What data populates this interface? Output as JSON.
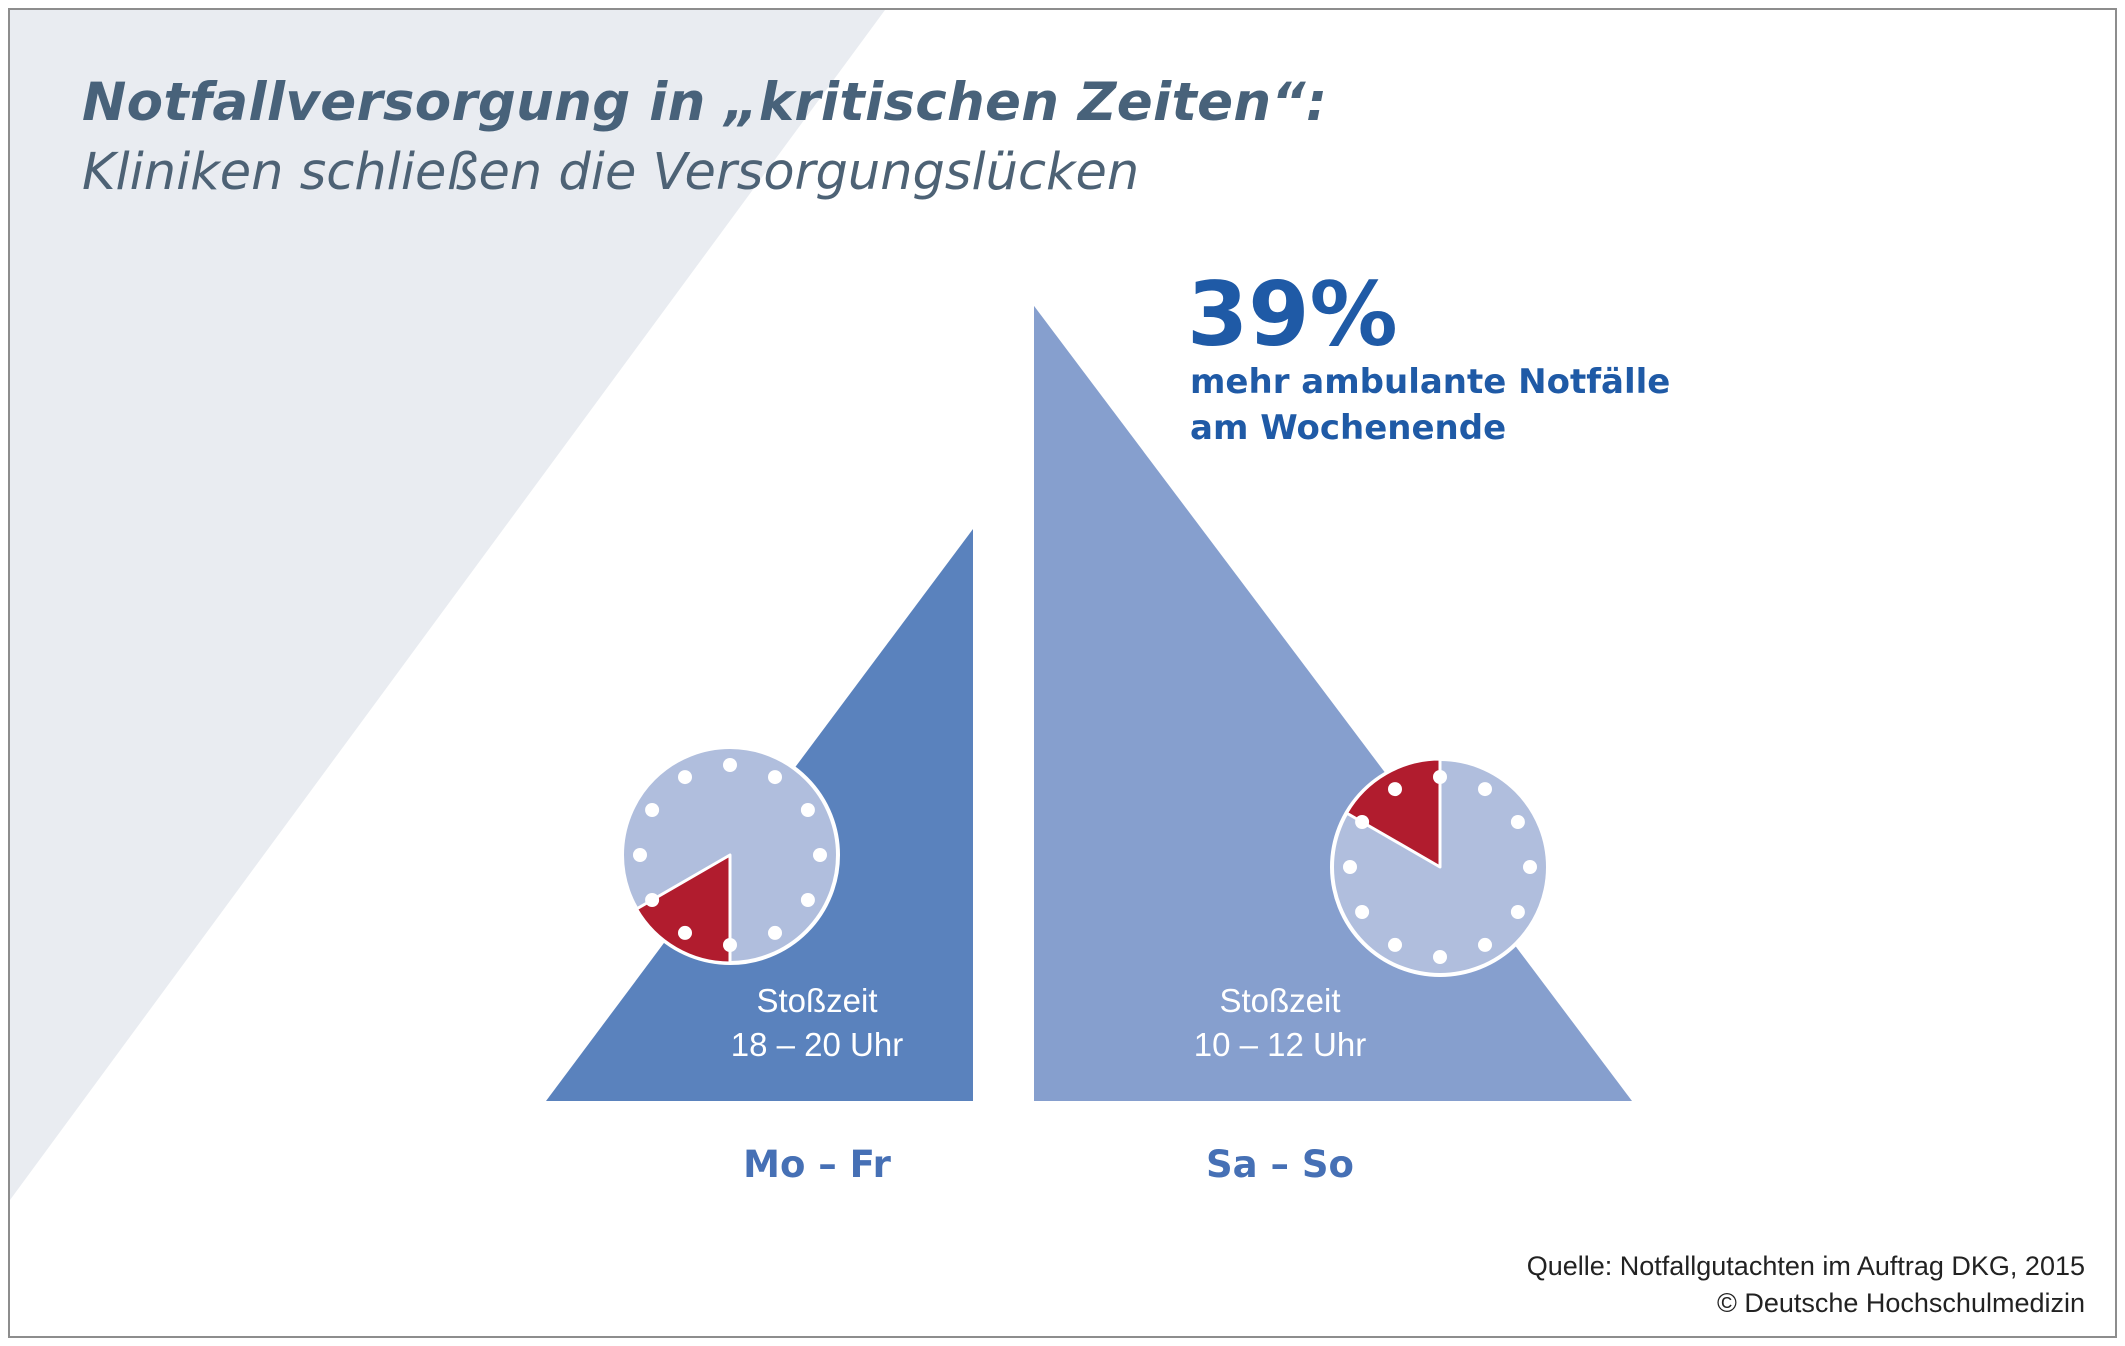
{
  "header": {
    "title": "Notfallversorgung in „kritischen Zeiten“:",
    "subtitle": "Kliniken schließen die Versorgungslücken"
  },
  "chart_data": {
    "type": "bar",
    "categories": [
      "Mo – Fr",
      "Sa – So"
    ],
    "values": [
      100,
      139
    ],
    "highlight": {
      "value": "39%",
      "line1": "mehr ambulante Notfälle",
      "line2": "am Wochenende"
    },
    "peak_times": [
      {
        "label": "Stoßzeit",
        "time": "18 – 20 Uhr",
        "start_hour": 18,
        "end_hour": 20
      },
      {
        "label": "Stoßzeit",
        "time": "10 – 12 Uhr",
        "start_hour": 10,
        "end_hour": 12
      }
    ]
  },
  "colors": {
    "weekday": "#5a82bd",
    "weekend": "#869fce",
    "clock_face": "#b0bedd",
    "peak": "#b11c2e",
    "highlight_text": "#1f5aa6",
    "category_text": "#4670b5",
    "background_wedge": "#e9ecf1"
  },
  "footer": {
    "source_line1": "Quelle: Notfallgutachten im Auftrag DKG, 2015",
    "source_line2": "© Deutsche Hochschulmedizin"
  }
}
